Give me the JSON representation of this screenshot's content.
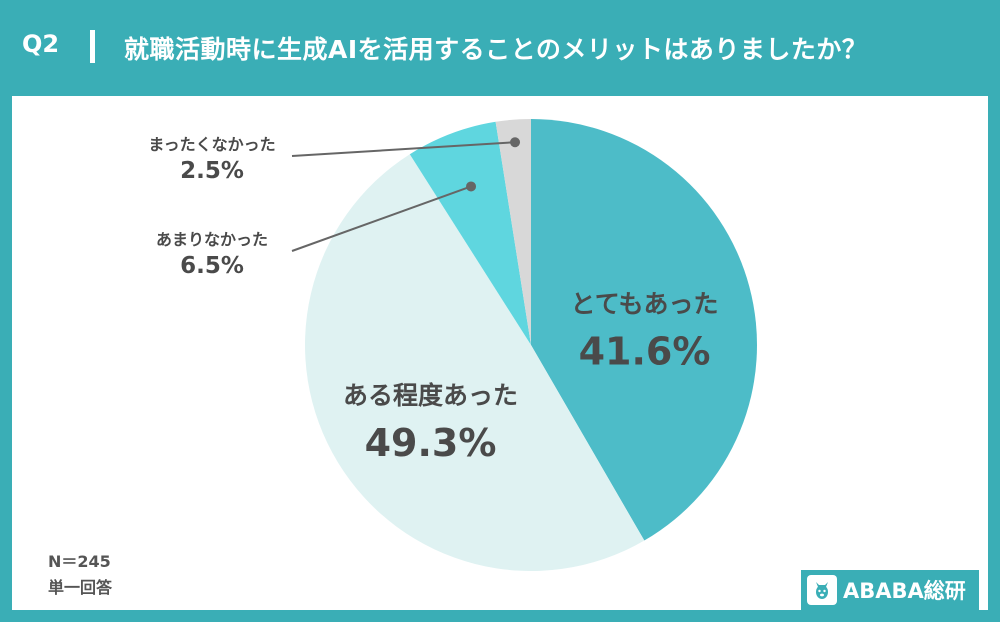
{
  "header": {
    "q_label": "Q2",
    "title": "就職活動時に生成AIを活用することのメリットはありましたか？"
  },
  "chart_data": {
    "type": "pie",
    "slices": [
      {
        "label": "とてもあった",
        "value": 41.6,
        "display": "41.6%",
        "color": "#4dbcc8"
      },
      {
        "label": "ある程度あった",
        "value": 49.3,
        "display": "49.3%",
        "color": "#dff2f2"
      },
      {
        "label": "あまりなかった",
        "value": 6.5,
        "display": "6.5%",
        "color": "#5fd6df"
      },
      {
        "label": "まったくなかった",
        "value": 2.5,
        "display": "2.5%",
        "color": "#d8d8d8"
      }
    ]
  },
  "footnote": {
    "n": "N＝245",
    "type": "単一回答"
  },
  "brand": {
    "name": "ABABA総研"
  },
  "colors": {
    "header_bg": "#3aaeb6",
    "label_text": "#4a4a4a",
    "leader": "#666666"
  }
}
